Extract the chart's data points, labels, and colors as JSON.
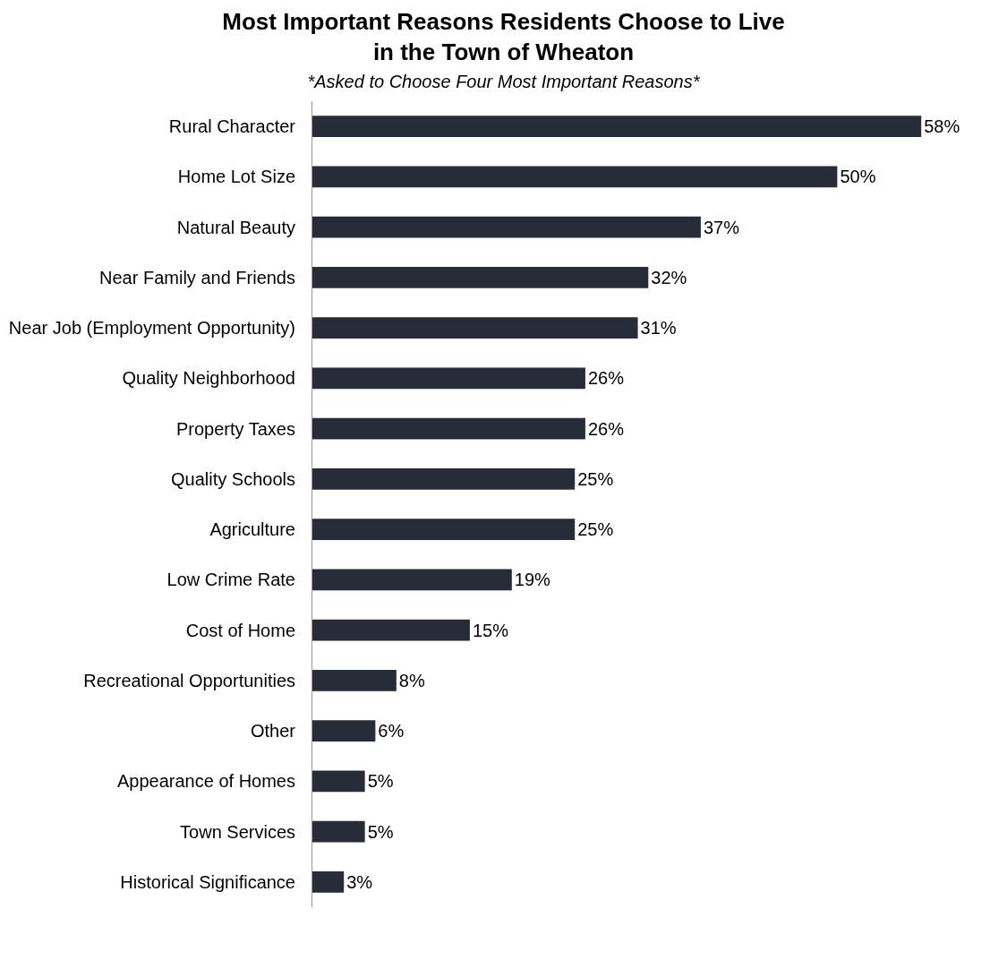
{
  "chart_data": {
    "type": "bar",
    "orientation": "horizontal",
    "title": "Most Important Reasons Residents Choose to Live in the Town of Wheaton",
    "subtitle": "*Asked to Choose Four Most Important Reasons*",
    "categories": [
      "Rural Character",
      "Home Lot Size",
      "Natural Beauty",
      "Near Family and Friends",
      "Near Job (Employment Opportunity)",
      "Quality Neighborhood",
      "Property Taxes",
      "Quality Schools",
      "Agriculture",
      "Low Crime Rate",
      "Cost of Home",
      "Recreational Opportunities",
      "Other",
      "Appearance of Homes",
      "Town Services",
      "Historical Significance"
    ],
    "values": [
      58,
      50,
      37,
      32,
      31,
      26,
      26,
      25,
      25,
      19,
      15,
      8,
      6,
      5,
      5,
      3
    ],
    "value_labels": [
      "58%",
      "50%",
      "37%",
      "32%",
      "31%",
      "26%",
      "26%",
      "25%",
      "25%",
      "19%",
      "15%",
      "8%",
      "6%",
      "5%",
      "5%",
      "3%"
    ],
    "color": "#262c38"
  }
}
